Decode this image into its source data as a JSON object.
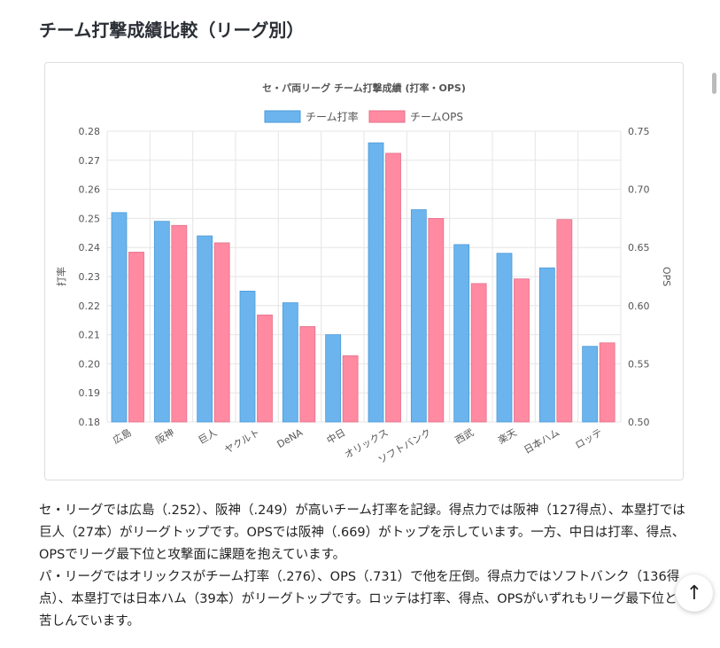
{
  "page_title": "チーム打撃成績比較（リーグ別）",
  "chart_data": {
    "type": "bar",
    "title": "セ・パ両リーグ チーム打撃成績 (打率・OPS)",
    "categories": [
      "広島",
      "阪神",
      "巨人",
      "ヤクルト",
      "DeNA",
      "中日",
      "オリックス",
      "ソフトバンク",
      "西武",
      "楽天",
      "日本ハム",
      "ロッテ"
    ],
    "series": [
      {
        "name": "チーム打率",
        "axis": "left",
        "color": "#6cb4ee",
        "values": [
          0.252,
          0.249,
          0.244,
          0.225,
          0.221,
          0.21,
          0.276,
          0.253,
          0.241,
          0.238,
          0.233,
          0.206
        ]
      },
      {
        "name": "チームOPS",
        "axis": "right",
        "color": "#ff8aa2",
        "values": [
          0.646,
          0.669,
          0.654,
          0.592,
          0.582,
          0.557,
          0.731,
          0.675,
          0.619,
          0.623,
          0.674,
          0.568
        ]
      }
    ],
    "ylabel": "打率",
    "ylim": [
      0.18,
      0.28
    ],
    "yticks": [
      "0.18",
      "0.19",
      "0.20",
      "0.21",
      "0.22",
      "0.23",
      "0.24",
      "0.25",
      "0.26",
      "0.27",
      "0.28"
    ],
    "y2label": "OPS",
    "y2lim": [
      0.5,
      0.75
    ],
    "y2ticks": [
      "0.50",
      "0.55",
      "0.60",
      "0.65",
      "0.70",
      "0.75"
    ],
    "grid": true,
    "legend": "top"
  },
  "paragraphs": [
    "セ・リーグでは広島（.252）、阪神（.249）が高いチーム打率を記録。得点力では阪神（127得点）、本塁打では巨人（27本）がリーグトップです。OPSでは阪神（.669）がトップを示しています。一方、中日は打率、得点、OPSでリーグ最下位と攻撃面に課題を抱えています。",
    "パ・リーグではオリックスがチーム打率（.276）、OPS（.731）で他を圧倒。得点力ではソフトバンク（136得点）、本塁打では日本ハム（39本）がリーグトップです。ロッテは打率、得点、OPSがいずれもリーグ最下位と苦しんでいます。"
  ],
  "scroll_top_icon": "arrow-up-icon"
}
